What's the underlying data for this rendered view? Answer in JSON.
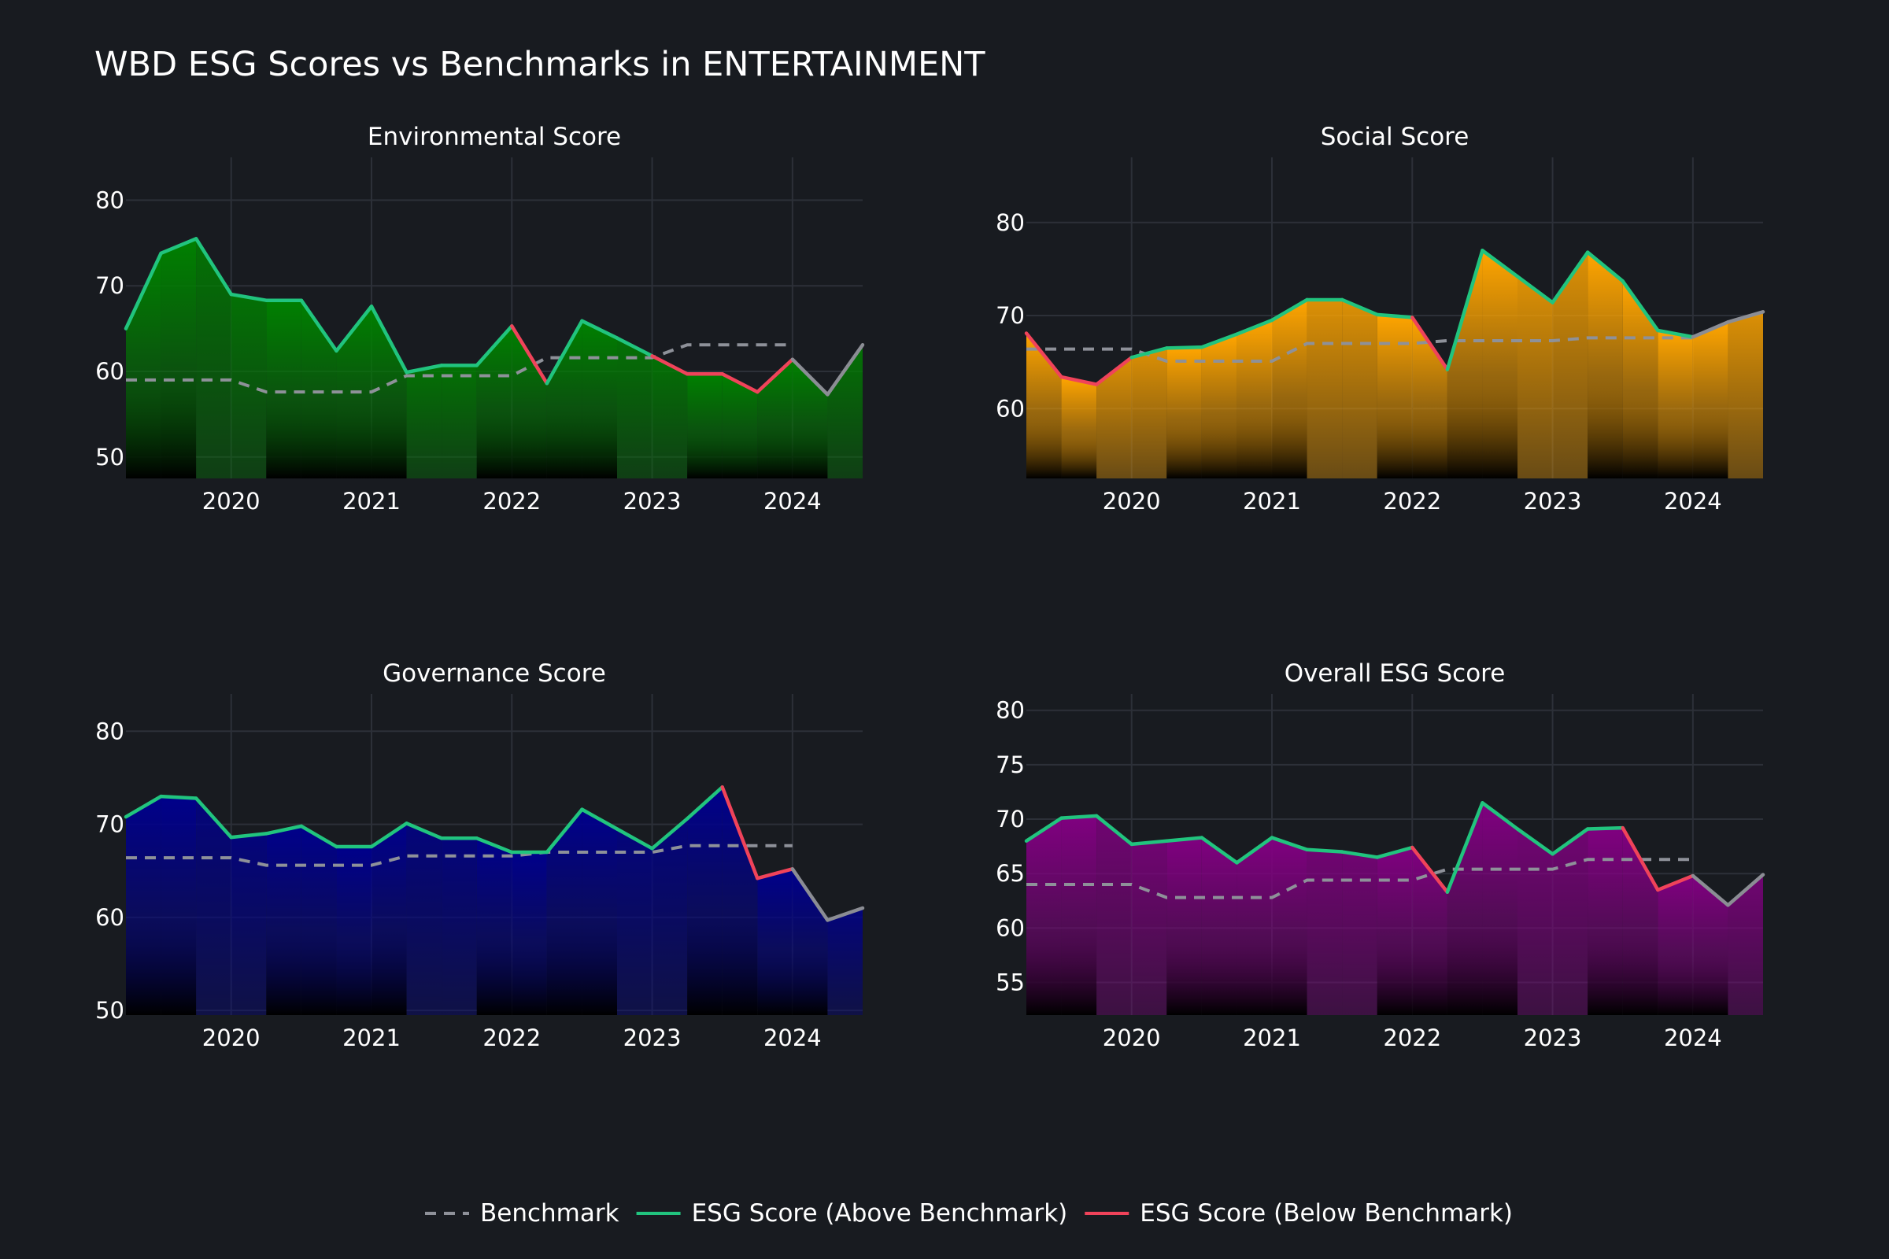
{
  "title": "WBD ESG Scores vs Benchmarks in ENTERTAINMENT",
  "colors": {
    "background": "#181b20",
    "grid": "#2c3038",
    "text": "#ffffff",
    "above": "#21c47e",
    "below": "#f0435a",
    "benchmark": "#8e9199",
    "neutral": "#8b8d94"
  },
  "legend": [
    {
      "key": "benchmark",
      "label": "Benchmark",
      "style": "dash"
    },
    {
      "key": "above",
      "label": "ESG Score (Above Benchmark)",
      "style": "solid"
    },
    {
      "key": "below",
      "label": "ESG Score (Below Benchmark)",
      "style": "solid"
    }
  ],
  "chart_data": [
    {
      "type": "area",
      "title": "Environmental Score",
      "fill_color": "#008000",
      "xlim": [
        2019.25,
        2024.5
      ],
      "ylim": [
        47.5,
        85
      ],
      "x_ticks": [
        2020,
        2021,
        2022,
        2023,
        2024
      ],
      "y_ticks": [
        50,
        60,
        70,
        80
      ],
      "x": [
        2019.25,
        2019.5,
        2019.75,
        2020.0,
        2020.25,
        2020.5,
        2020.75,
        2021.0,
        2021.25,
        2021.5,
        2021.75,
        2022.0,
        2022.25,
        2022.5,
        2022.75,
        2023.0,
        2023.25,
        2023.5,
        2023.75,
        2024.0,
        2024.25,
        2024.5
      ],
      "score": [
        65.0,
        73.8,
        75.5,
        69.0,
        68.3,
        68.3,
        62.4,
        67.6,
        59.9,
        60.7,
        60.7,
        65.3,
        58.6,
        65.9,
        63.9,
        61.8,
        59.7,
        59.7,
        57.6,
        61.4,
        57.3,
        63.1
      ],
      "benchmark": [
        59.0,
        59.0,
        59.0,
        59.0,
        57.6,
        57.6,
        57.6,
        57.6,
        59.5,
        59.5,
        59.5,
        59.5,
        61.6,
        61.6,
        61.6,
        61.6,
        63.1,
        63.1,
        63.1,
        63.1,
        null,
        null
      ]
    },
    {
      "type": "area",
      "title": "Social Score",
      "fill_color": "#ffa500",
      "xlim": [
        2019.25,
        2024.5
      ],
      "ylim": [
        52.5,
        87
      ],
      "x_ticks": [
        2020,
        2021,
        2022,
        2023,
        2024
      ],
      "y_ticks": [
        60,
        70,
        80
      ],
      "x": [
        2019.25,
        2019.5,
        2019.75,
        2020.0,
        2020.25,
        2020.5,
        2020.75,
        2021.0,
        2021.25,
        2021.5,
        2021.75,
        2022.0,
        2022.25,
        2022.5,
        2022.75,
        2023.0,
        2023.25,
        2023.5,
        2023.75,
        2024.0,
        2024.25,
        2024.5
      ],
      "score": [
        68.1,
        63.4,
        62.6,
        65.5,
        66.5,
        66.6,
        68.0,
        69.5,
        71.7,
        71.7,
        70.1,
        69.8,
        64.2,
        77.0,
        74.2,
        71.4,
        76.8,
        73.7,
        68.4,
        67.7,
        69.3,
        70.4
      ],
      "benchmark": [
        66.4,
        66.4,
        66.4,
        66.4,
        65.1,
        65.1,
        65.1,
        65.1,
        67.0,
        67.0,
        67.0,
        67.0,
        67.3,
        67.3,
        67.3,
        67.3,
        67.6,
        67.6,
        67.6,
        67.6,
        null,
        null
      ]
    },
    {
      "type": "area",
      "title": "Governance Score",
      "fill_color": "#00008b",
      "xlim": [
        2019.25,
        2024.5
      ],
      "ylim": [
        49.5,
        84
      ],
      "x_ticks": [
        2020,
        2021,
        2022,
        2023,
        2024
      ],
      "y_ticks": [
        50,
        60,
        70,
        80
      ],
      "x": [
        2019.25,
        2019.5,
        2019.75,
        2020.0,
        2020.25,
        2020.5,
        2020.75,
        2021.0,
        2021.25,
        2021.5,
        2021.75,
        2022.0,
        2022.25,
        2022.5,
        2022.75,
        2023.0,
        2023.25,
        2023.5,
        2023.75,
        2024.0,
        2024.25,
        2024.5
      ],
      "score": [
        70.8,
        73.0,
        72.8,
        68.6,
        69.0,
        69.8,
        67.6,
        67.6,
        70.1,
        68.5,
        68.5,
        67.0,
        67.0,
        71.6,
        69.5,
        67.4,
        70.6,
        74.0,
        64.2,
        65.2,
        59.7,
        61.0
      ],
      "benchmark": [
        66.4,
        66.4,
        66.4,
        66.4,
        65.6,
        65.6,
        65.6,
        65.6,
        66.6,
        66.6,
        66.6,
        66.6,
        67.0,
        67.0,
        67.0,
        67.0,
        67.7,
        67.7,
        67.7,
        67.7,
        null,
        null
      ]
    },
    {
      "type": "area",
      "title": "Overall ESG Score",
      "fill_color": "#800080",
      "xlim": [
        2019.25,
        2024.5
      ],
      "ylim": [
        52,
        81.5
      ],
      "x_ticks": [
        2020,
        2021,
        2022,
        2023,
        2024
      ],
      "y_ticks": [
        55,
        60,
        65,
        70,
        75,
        80
      ],
      "x": [
        2019.25,
        2019.5,
        2019.75,
        2020.0,
        2020.25,
        2020.5,
        2020.75,
        2021.0,
        2021.25,
        2021.5,
        2021.75,
        2022.0,
        2022.25,
        2022.5,
        2022.75,
        2023.0,
        2023.25,
        2023.5,
        2023.75,
        2024.0,
        2024.25,
        2024.5
      ],
      "score": [
        68.0,
        70.1,
        70.3,
        67.7,
        68.0,
        68.3,
        66.0,
        68.3,
        67.2,
        67.0,
        66.5,
        67.4,
        63.3,
        71.5,
        69.1,
        66.8,
        69.1,
        69.2,
        63.5,
        64.8,
        62.1,
        64.9
      ],
      "benchmark": [
        64.0,
        64.0,
        64.0,
        64.0,
        62.8,
        62.8,
        62.8,
        62.8,
        64.4,
        64.4,
        64.4,
        64.4,
        65.4,
        65.4,
        65.4,
        65.4,
        66.3,
        66.3,
        66.3,
        66.3,
        null,
        null
      ]
    }
  ]
}
